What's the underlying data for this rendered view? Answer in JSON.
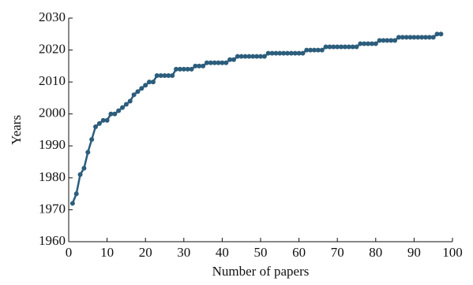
{
  "chart_data": {
    "type": "line",
    "x_label": "Number of papers",
    "y_label": "Years",
    "x": [
      1,
      2,
      3,
      4,
      5,
      6,
      7,
      8,
      9,
      10,
      11,
      12,
      13,
      14,
      15,
      16,
      17,
      18,
      19,
      20,
      21,
      22,
      23,
      24,
      25,
      26,
      27,
      28,
      29,
      30,
      31,
      32,
      33,
      34,
      35,
      36,
      37,
      38,
      39,
      40,
      41,
      42,
      43,
      44,
      45,
      46,
      47,
      48,
      49,
      50,
      51,
      52,
      53,
      54,
      55,
      56,
      57,
      58,
      59,
      60,
      61,
      62,
      63,
      64,
      65,
      66,
      67,
      68,
      69,
      70,
      71,
      72,
      73,
      74,
      75,
      76,
      77,
      78,
      79,
      80,
      81,
      82,
      83,
      84,
      85,
      86,
      87,
      88,
      89,
      90,
      91,
      92,
      93,
      94,
      95,
      96,
      97
    ],
    "series": [
      {
        "name": "Years",
        "color": "#2c5d7c",
        "values": [
          1972,
          1975,
          1981,
          1983,
          1988,
          1992,
          1996,
          1997,
          1998,
          1998,
          2000,
          2000,
          2001,
          2002,
          2003,
          2004,
          2006,
          2007,
          2008,
          2009,
          2010,
          2010,
          2012,
          2012,
          2012,
          2012,
          2012,
          2014,
          2014,
          2014,
          2014,
          2014,
          2015,
          2015,
          2015,
          2016,
          2016,
          2016,
          2016,
          2016,
          2016,
          2017,
          2017,
          2018,
          2018,
          2018,
          2018,
          2018,
          2018,
          2018,
          2018,
          2019,
          2019,
          2019,
          2019,
          2019,
          2019,
          2019,
          2019,
          2019,
          2019,
          2020,
          2020,
          2020,
          2020,
          2020,
          2021,
          2021,
          2021,
          2021,
          2021,
          2021,
          2021,
          2021,
          2021,
          2022,
          2022,
          2022,
          2022,
          2022,
          2023,
          2023,
          2023,
          2023,
          2023,
          2024,
          2024,
          2024,
          2024,
          2024,
          2024,
          2024,
          2024,
          2024,
          2024,
          2025,
          2025
        ]
      }
    ],
    "xlim": [
      0,
      100
    ],
    "xticks": [
      0,
      10,
      20,
      30,
      40,
      50,
      60,
      70,
      80,
      90,
      100
    ],
    "ylim": [
      1960,
      2030
    ],
    "yticks": [
      1960,
      1970,
      1980,
      1990,
      2000,
      2010,
      2020,
      2030
    ],
    "grid": false
  }
}
